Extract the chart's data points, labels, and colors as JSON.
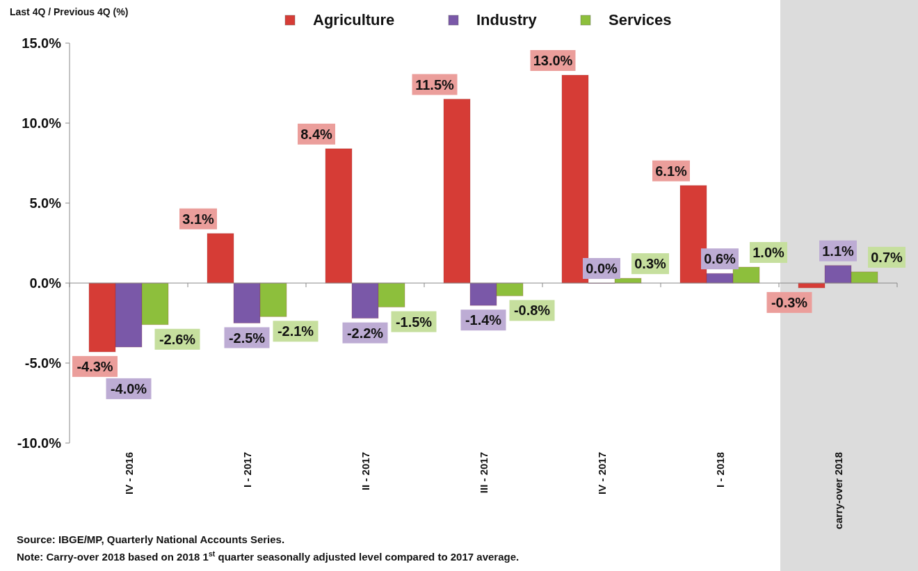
{
  "chart_data": {
    "type": "bar",
    "ylabel": "Last 4Q / Previous 4Q (%)",
    "categories": [
      "IV - 2016",
      "I - 2017",
      "II - 2017",
      "III - 2017",
      "IV - 2017",
      "I - 2018",
      "carry-over 2018"
    ],
    "series": [
      {
        "name": "Agriculture",
        "color": "#d63c36",
        "values": [
          -4.3,
          3.1,
          8.4,
          11.5,
          13.0,
          6.1,
          -0.3
        ],
        "value_labels": [
          "-4.3%",
          "3.1%",
          "8.4%",
          "11.5%",
          "13.0%",
          "6.1%",
          "-0.3%"
        ]
      },
      {
        "name": "Industry",
        "color": "#7a58a8",
        "values": [
          -4.0,
          -2.5,
          -2.2,
          -1.4,
          0.0,
          0.6,
          1.1
        ],
        "value_labels": [
          "-4.0%",
          "-2.5%",
          "-2.2%",
          "-1.4%",
          "0.0%",
          "0.6%",
          "1.1%"
        ]
      },
      {
        "name": "Services",
        "color": "#8dbf3c",
        "values": [
          -2.6,
          -2.1,
          -1.5,
          -0.8,
          0.3,
          1.0,
          0.7
        ],
        "value_labels": [
          "-2.6%",
          "-2.1%",
          "-1.5%",
          "-0.8%",
          "0.3%",
          "1.0%",
          "0.7%"
        ]
      }
    ],
    "ylim": [
      -10,
      15
    ],
    "yticks": [
      {
        "value": -10,
        "label": "-10.0%"
      },
      {
        "value": -5,
        "label": "-5.0%"
      },
      {
        "value": 0,
        "label": "0.0%"
      },
      {
        "value": 5,
        "label": "5.0%"
      },
      {
        "value": 10,
        "label": "10.0%"
      },
      {
        "value": 15,
        "label": "15.0%"
      }
    ],
    "bands": [
      {
        "axis": "x",
        "from": "carry-over 2018",
        "to": "carry-over 2018",
        "color": "#dcdcdc"
      }
    ],
    "legend": "top",
    "annotations": [
      "Source: IBGE/MP, Quarterly National Accounts Series.",
      "Note: Carry-over 2018 based on 2018 1$^{st}$ quarter seasonally adjusted level compared to 2017 average."
    ]
  }
}
